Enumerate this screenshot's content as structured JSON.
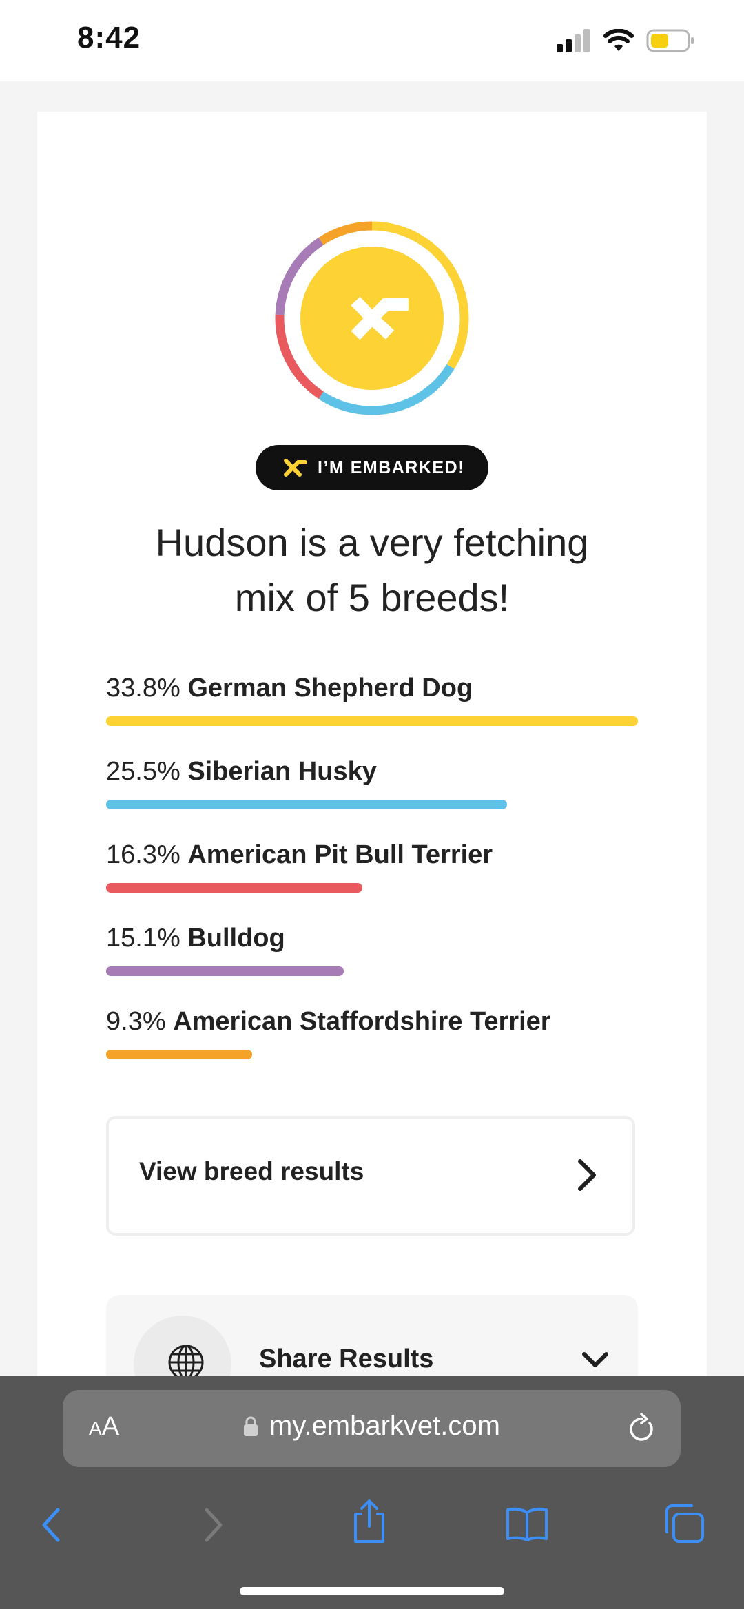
{
  "status_bar": {
    "time": "8:42"
  },
  "embark": {
    "badge_text": "I’M EMBARKED!",
    "headline_line1": "Hudson is a very fetching",
    "headline_line2": "mix of 5 breeds!"
  },
  "breeds": [
    {
      "percent": "33.8%",
      "percent_value": 33.8,
      "name": "German Shepherd Dog",
      "color": "#fdd235"
    },
    {
      "percent": "25.5%",
      "percent_value": 25.5,
      "name": "Siberian Husky",
      "color": "#5ec2e6"
    },
    {
      "percent": "16.3%",
      "percent_value": 16.3,
      "name": "American Pit Bull Terrier",
      "color": "#e95a5e"
    },
    {
      "percent": "15.1%",
      "percent_value": 15.1,
      "name": "Bulldog",
      "color": "#a77bb5"
    },
    {
      "percent": "9.3%",
      "percent_value": 9.3,
      "name": "American Staffordshire Terrier",
      "color": "#f4a328"
    }
  ],
  "actions": {
    "view_breed_results": "View breed results",
    "share_results": "Share Results"
  },
  "browser": {
    "text_size_label_small": "A",
    "text_size_label_large": "A",
    "url": "my.embarkvet.com",
    "accent_color": "#3d8ff5"
  },
  "icons": [
    "embark-logo-icon",
    "lock-icon",
    "reload-icon",
    "back-icon",
    "forward-icon",
    "share-icon",
    "bookmarks-icon",
    "tabs-icon",
    "globe-icon",
    "chevron-right-icon",
    "chevron-down-icon",
    "signal-icon",
    "wifi-icon",
    "battery-icon"
  ]
}
